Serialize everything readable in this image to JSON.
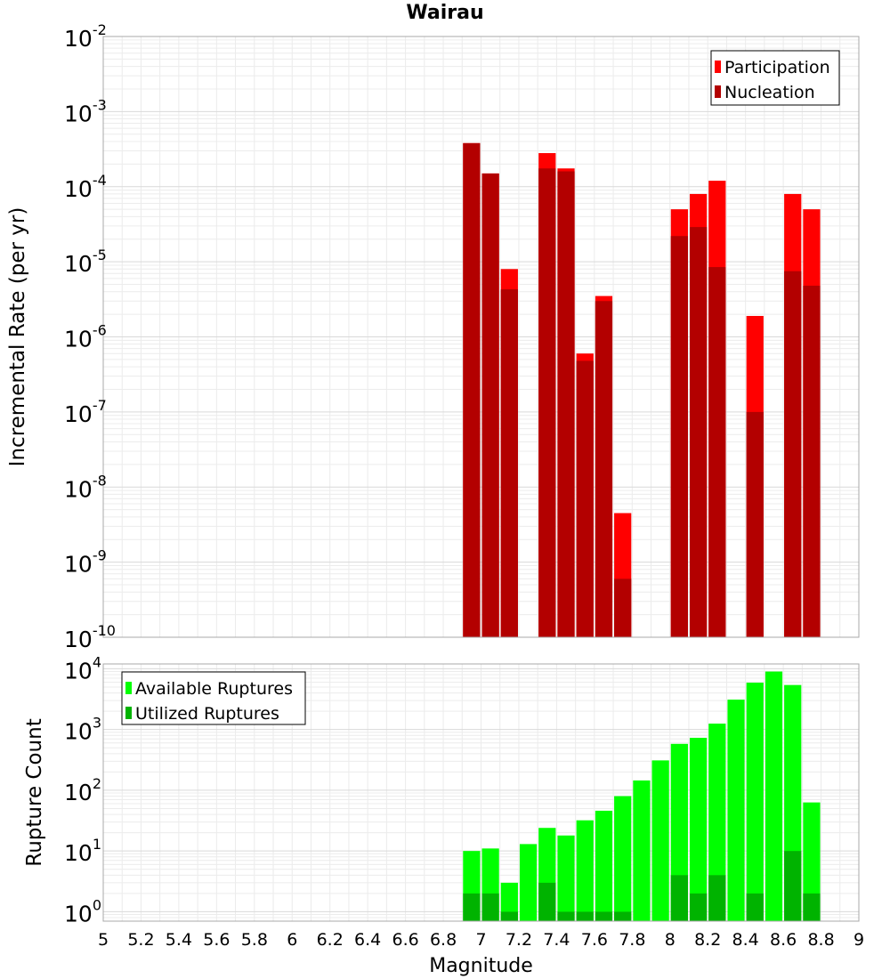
{
  "title": "Wairau",
  "chart_data": [
    {
      "type": "bar",
      "name": "rates",
      "ylabel": "Incremental Rate (per yr)",
      "xlabel": "",
      "yscale": "log",
      "ylim": [
        1e-10,
        0.01
      ],
      "xlim": [
        5,
        9
      ],
      "grid": true,
      "legend_position": "top-right",
      "ytick_labels": [
        {
          "base": "10",
          "exp": "-10"
        },
        {
          "base": "10",
          "exp": "-9"
        },
        {
          "base": "10",
          "exp": "-8"
        },
        {
          "base": "10",
          "exp": "-7"
        },
        {
          "base": "10",
          "exp": "-6"
        },
        {
          "base": "10",
          "exp": "-5"
        },
        {
          "base": "10",
          "exp": "-4"
        },
        {
          "base": "10",
          "exp": "-3"
        },
        {
          "base": "10",
          "exp": "-2"
        }
      ],
      "x": [
        6.95,
        7.05,
        7.15,
        7.35,
        7.45,
        7.55,
        7.65,
        7.75,
        8.05,
        8.15,
        8.25,
        8.45,
        8.65,
        8.75
      ],
      "series": [
        {
          "name": "Participation",
          "color": "#ff0000",
          "values": [
            0.00038,
            0.00015,
            8e-06,
            0.00028,
            0.000175,
            6e-07,
            3.5e-06,
            4.5e-09,
            5e-05,
            8e-05,
            0.00012,
            1.9e-06,
            8e-05,
            5e-05
          ]
        },
        {
          "name": "Nucleation",
          "color": "#b30000",
          "values": [
            0.00038,
            0.00015,
            4.3e-06,
            0.000175,
            0.00016,
            4.8e-07,
            3e-06,
            6e-10,
            2.2e-05,
            2.9e-05,
            8.5e-06,
            1e-07,
            7.5e-06,
            4.8e-06
          ]
        }
      ]
    },
    {
      "type": "bar",
      "name": "ruptures",
      "ylabel": "Rupture Count",
      "xlabel": "Magnitude",
      "yscale": "log",
      "ylim": [
        0.7,
        12000
      ],
      "xlim": [
        5,
        9
      ],
      "grid": true,
      "legend_position": "top-left",
      "ytick_labels": [
        {
          "base": "10",
          "exp": "0"
        },
        {
          "base": "10",
          "exp": "1"
        },
        {
          "base": "10",
          "exp": "2"
        },
        {
          "base": "10",
          "exp": "3"
        },
        {
          "base": "10",
          "exp": "4"
        }
      ],
      "xtick_labels": [
        "5",
        "5.2",
        "5.4",
        "5.6",
        "5.8",
        "6",
        "6.2",
        "6.4",
        "6.6",
        "6.8",
        "7",
        "7.2",
        "7.4",
        "7.6",
        "7.8",
        "8",
        "8.2",
        "8.4",
        "8.6",
        "8.8",
        "9"
      ],
      "x": [
        6.95,
        7.05,
        7.15,
        7.25,
        7.35,
        7.45,
        7.55,
        7.65,
        7.75,
        7.85,
        7.95,
        8.05,
        8.15,
        8.25,
        8.35,
        8.45,
        8.55,
        8.65,
        8.75
      ],
      "series": [
        {
          "name": "Available Ruptures",
          "color": "#00ff00",
          "values": [
            10,
            11,
            3,
            13,
            24,
            18,
            32,
            46,
            80,
            145,
            310,
            580,
            730,
            1250,
            3100,
            5900,
            9000,
            5400,
            63
          ]
        },
        {
          "name": "Utilized Ruptures",
          "color": "#00b300",
          "values": [
            2,
            2,
            1,
            0,
            3,
            1,
            1,
            1,
            1,
            0,
            0,
            4,
            2,
            4,
            0,
            2,
            0,
            10,
            2
          ]
        }
      ]
    }
  ]
}
